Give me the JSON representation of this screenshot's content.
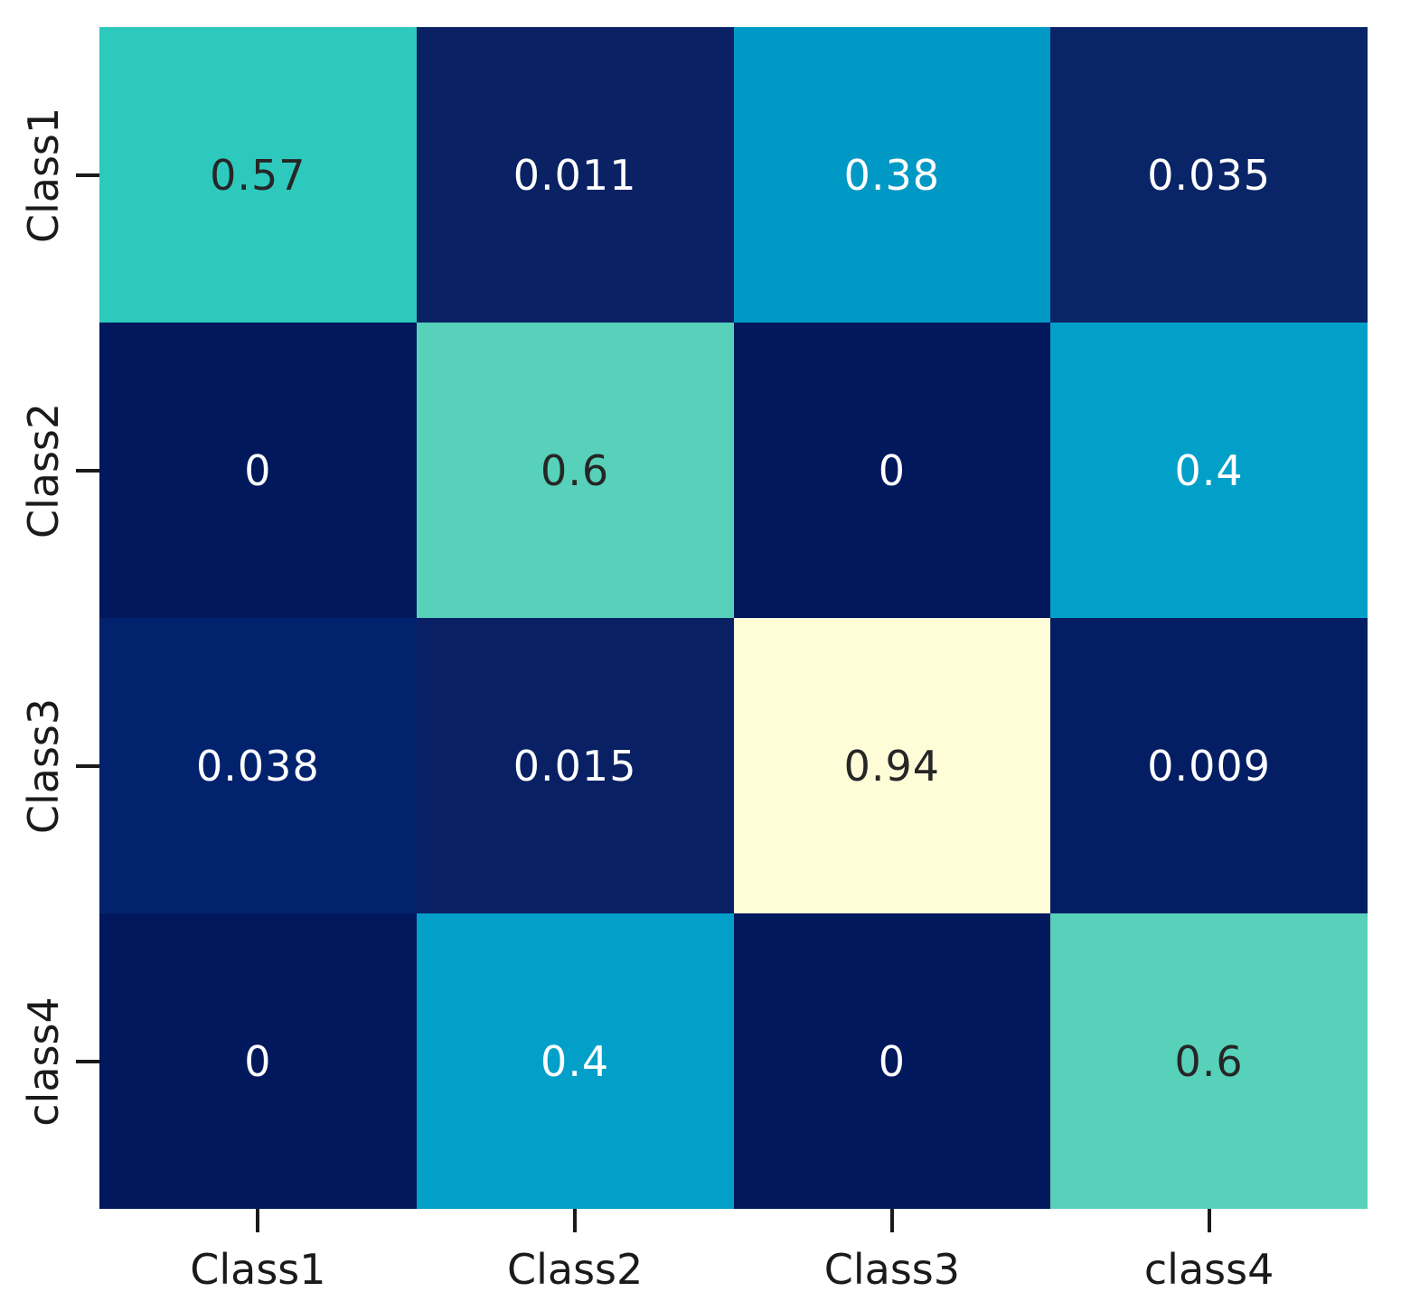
{
  "chart_data": {
    "type": "heatmap",
    "title": "",
    "xlabel": "",
    "ylabel": "",
    "colormap": "YlGnBu_r",
    "legend": "none",
    "grid": false,
    "x_categories": [
      "Class1",
      "Class2",
      "Class3",
      "class4"
    ],
    "y_categories": [
      "Class1",
      "Class2",
      "Class3",
      "class4"
    ],
    "values": [
      [
        0.57,
        0.011,
        0.38,
        0.035
      ],
      [
        0,
        0.6,
        0,
        0.4
      ],
      [
        0.038,
        0.015,
        0.94,
        0.009
      ],
      [
        0,
        0.4,
        0,
        0.6
      ]
    ],
    "cell_labels": [
      [
        "0.57",
        "0.011",
        "0.38",
        "0.035"
      ],
      [
        "0",
        "0.6",
        "0",
        "0.4"
      ],
      [
        "0.038",
        "0.015",
        "0.94",
        "0.009"
      ],
      [
        "0",
        "0.4",
        "0",
        "0.6"
      ]
    ],
    "cell_colors": [
      [
        "#2ec9bd",
        "#0a2164",
        "#0099c5",
        "#0a2468"
      ],
      [
        "#01185c",
        "#57d1b9",
        "#01185c",
        "#02a0c9"
      ],
      [
        "#03226e",
        "#092064",
        "#fffdd8",
        "#031e63"
      ],
      [
        "#01185c",
        "#02a0c9",
        "#01185c",
        "#57d1b9"
      ]
    ],
    "cell_text_colors": [
      [
        "#262626",
        "#ffffff",
        "#ffffff",
        "#ffffff"
      ],
      [
        "#ffffff",
        "#262626",
        "#ffffff",
        "#ffffff"
      ],
      [
        "#ffffff",
        "#ffffff",
        "#262626",
        "#ffffff"
      ],
      [
        "#ffffff",
        "#ffffff",
        "#ffffff",
        "#262626"
      ]
    ],
    "value_range": [
      0,
      1
    ],
    "axis_tick_color": "#1a1a1a",
    "background_color": "#ffffff"
  }
}
